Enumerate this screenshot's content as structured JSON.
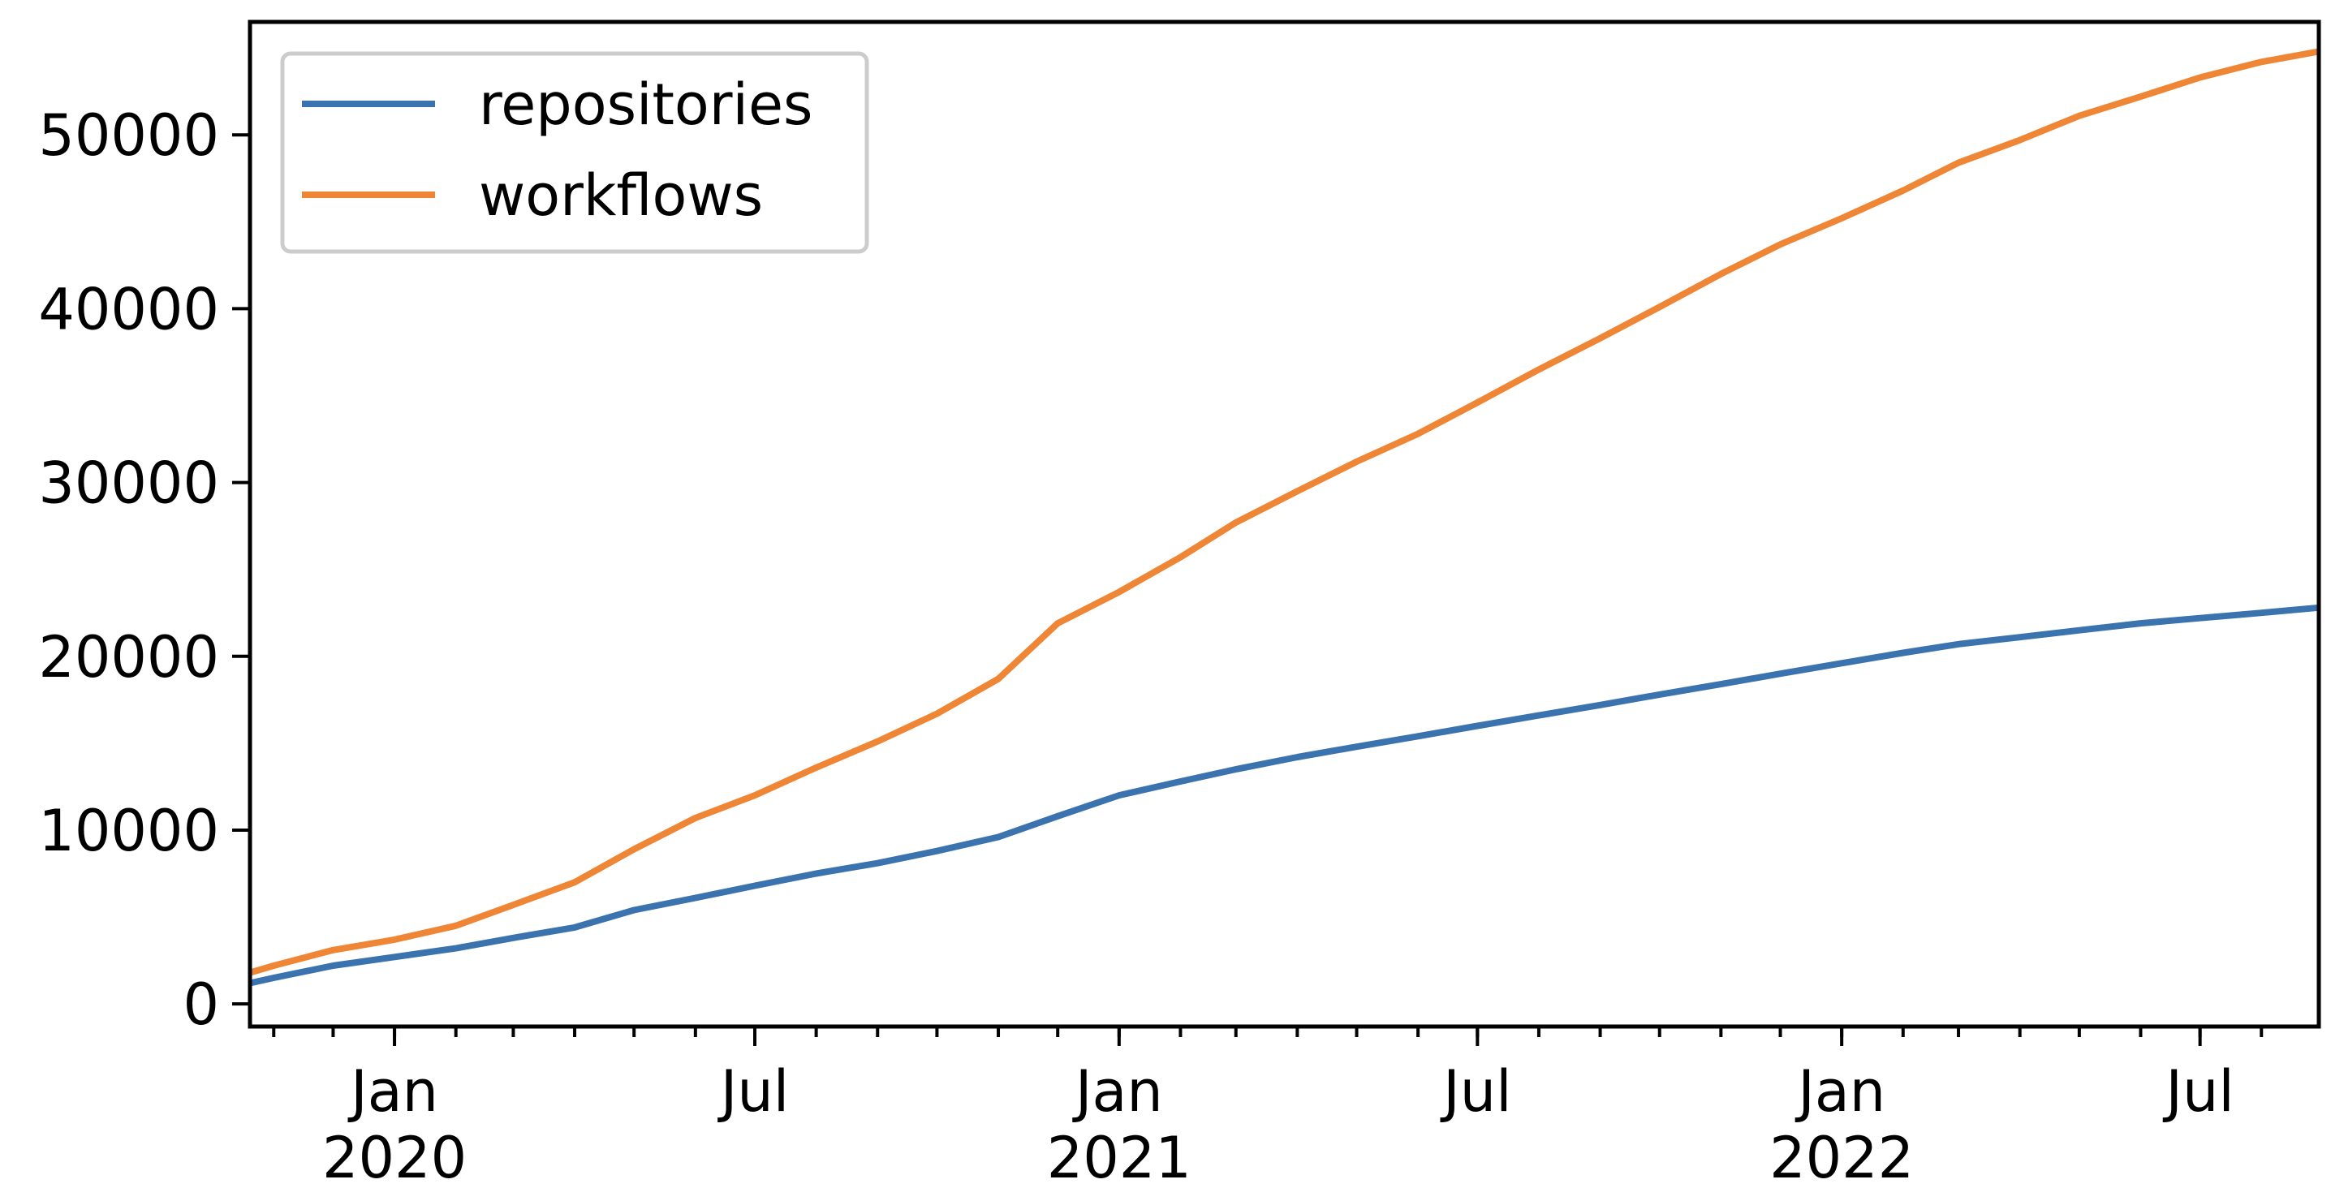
{
  "chart_data": {
    "type": "line",
    "title": "",
    "xlabel": "",
    "ylabel": "",
    "grid": false,
    "legend_position": "top-left",
    "x_range": [
      "2019-10-20",
      "2022-08-30"
    ],
    "ylim": [
      -1300,
      56500
    ],
    "y_ticks": [
      0,
      10000,
      20000,
      30000,
      40000,
      50000
    ],
    "y_tick_labels": [
      "0",
      "10000",
      "20000",
      "30000",
      "40000",
      "50000"
    ],
    "x_major_ticks": [
      {
        "date": "2020-01-01",
        "label": "Jan\n2020"
      },
      {
        "date": "2020-07-01",
        "label": "Jul"
      },
      {
        "date": "2021-01-01",
        "label": "Jan\n2021"
      },
      {
        "date": "2021-07-01",
        "label": "Jul"
      },
      {
        "date": "2022-01-01",
        "label": "Jan\n2022"
      },
      {
        "date": "2022-07-01",
        "label": "Jul"
      }
    ],
    "series": [
      {
        "name": "repositories",
        "color": "#3b73af",
        "points": [
          [
            "2019-10-20",
            1200
          ],
          [
            "2019-11-01",
            1500
          ],
          [
            "2019-12-01",
            2200
          ],
          [
            "2020-01-01",
            2700
          ],
          [
            "2020-02-01",
            3200
          ],
          [
            "2020-03-01",
            3800
          ],
          [
            "2020-04-01",
            4400
          ],
          [
            "2020-05-01",
            5400
          ],
          [
            "2020-06-01",
            6100
          ],
          [
            "2020-07-01",
            6800
          ],
          [
            "2020-08-01",
            7500
          ],
          [
            "2020-09-01",
            8100
          ],
          [
            "2020-10-01",
            8800
          ],
          [
            "2020-11-01",
            9600
          ],
          [
            "2020-12-01",
            10800
          ],
          [
            "2021-01-01",
            12000
          ],
          [
            "2021-02-01",
            12800
          ],
          [
            "2021-03-01",
            13500
          ],
          [
            "2021-04-01",
            14200
          ],
          [
            "2021-05-01",
            14800
          ],
          [
            "2021-06-01",
            15400
          ],
          [
            "2021-07-01",
            16000
          ],
          [
            "2021-08-01",
            16600
          ],
          [
            "2021-09-01",
            17200
          ],
          [
            "2021-10-01",
            17800
          ],
          [
            "2021-11-01",
            18400
          ],
          [
            "2021-12-01",
            19000
          ],
          [
            "2022-01-01",
            19600
          ],
          [
            "2022-02-01",
            20200
          ],
          [
            "2022-03-01",
            20700
          ],
          [
            "2022-04-01",
            21100
          ],
          [
            "2022-05-01",
            21500
          ],
          [
            "2022-06-01",
            21900
          ],
          [
            "2022-07-01",
            22200
          ],
          [
            "2022-08-01",
            22500
          ],
          [
            "2022-08-30",
            22800
          ]
        ]
      },
      {
        "name": "workflows",
        "color": "#ef8636",
        "points": [
          [
            "2019-10-20",
            1800
          ],
          [
            "2019-11-01",
            2200
          ],
          [
            "2019-12-01",
            3100
          ],
          [
            "2020-01-01",
            3700
          ],
          [
            "2020-02-01",
            4500
          ],
          [
            "2020-03-01",
            5700
          ],
          [
            "2020-04-01",
            7000
          ],
          [
            "2020-05-01",
            8900
          ],
          [
            "2020-06-01",
            10700
          ],
          [
            "2020-07-01",
            12000
          ],
          [
            "2020-08-01",
            13600
          ],
          [
            "2020-09-01",
            15100
          ],
          [
            "2020-10-01",
            16700
          ],
          [
            "2020-11-01",
            18700
          ],
          [
            "2020-12-01",
            21900
          ],
          [
            "2021-01-01",
            23700
          ],
          [
            "2021-02-01",
            25700
          ],
          [
            "2021-03-01",
            27700
          ],
          [
            "2021-04-01",
            29500
          ],
          [
            "2021-05-01",
            31200
          ],
          [
            "2021-06-01",
            32800
          ],
          [
            "2021-07-01",
            34600
          ],
          [
            "2021-08-01",
            36500
          ],
          [
            "2021-09-01",
            38300
          ],
          [
            "2021-10-01",
            40100
          ],
          [
            "2021-11-01",
            42000
          ],
          [
            "2021-12-01",
            43700
          ],
          [
            "2022-01-01",
            45200
          ],
          [
            "2022-02-01",
            46800
          ],
          [
            "2022-03-01",
            48400
          ],
          [
            "2022-04-01",
            49700
          ],
          [
            "2022-05-01",
            51100
          ],
          [
            "2022-06-01",
            52200
          ],
          [
            "2022-07-01",
            53300
          ],
          [
            "2022-08-01",
            54200
          ],
          [
            "2022-08-30",
            54800
          ]
        ]
      }
    ]
  }
}
